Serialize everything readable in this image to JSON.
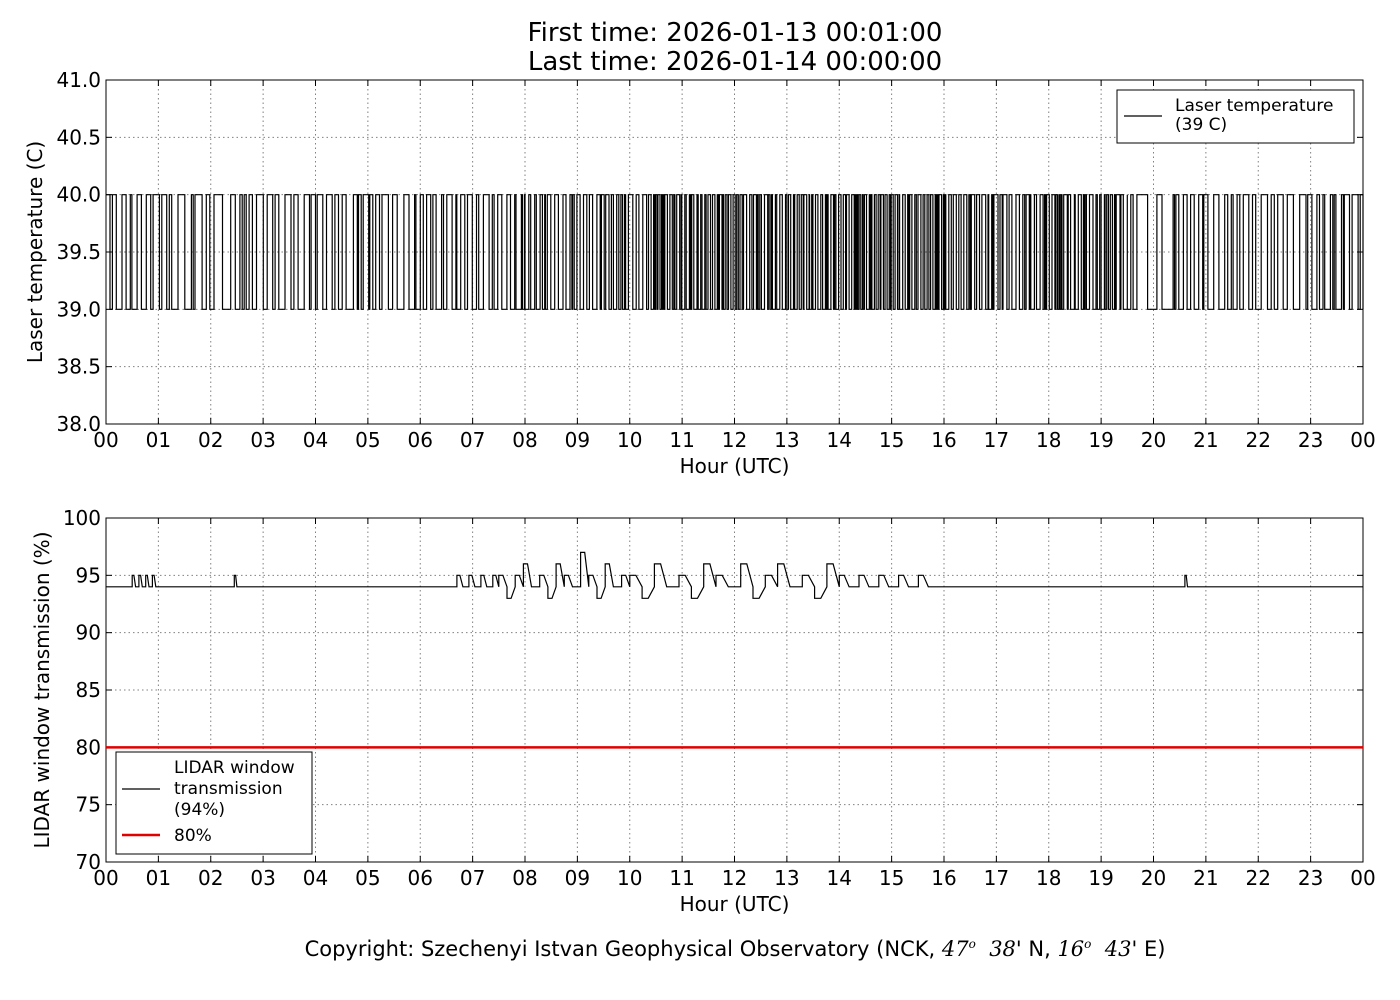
{
  "header": {
    "first_time": "First time: 2026-01-13 00:01:00",
    "last_time": "Last time: 2026-01-14 00:00:00"
  },
  "footer": {
    "prefix": "Copyright: Szechenyi Istvan Geophysical Observatory (NCK, ",
    "lat_deg": "47",
    "lat_sup": "o",
    "lat_min": "38",
    "lat_suffix": "' N, ",
    "lon_deg": "16",
    "lon_sup": "o",
    "lon_min": "43",
    "lon_suffix": "' E)"
  },
  "colors": {
    "series": "#000000",
    "threshold": "#e00000",
    "grid": "#808080"
  },
  "chart_data": [
    {
      "type": "line",
      "ylabel": "Laser temperature (C)",
      "xlabel": "Hour (UTC)",
      "xlim": [
        0,
        24
      ],
      "ylim": [
        38.0,
        41.0
      ],
      "xticks": [
        0,
        1,
        2,
        3,
        4,
        5,
        6,
        7,
        8,
        9,
        10,
        11,
        12,
        13,
        14,
        15,
        16,
        17,
        18,
        19,
        20,
        21,
        22,
        23,
        24
      ],
      "xtick_labels": [
        "00",
        "01",
        "02",
        "03",
        "04",
        "05",
        "06",
        "07",
        "08",
        "09",
        "10",
        "11",
        "12",
        "13",
        "14",
        "15",
        "16",
        "17",
        "18",
        "19",
        "20",
        "21",
        "22",
        "23",
        "00"
      ],
      "yticks": [
        38.0,
        38.5,
        39.0,
        39.5,
        40.0,
        40.5,
        41.0
      ],
      "ytick_labels": [
        "38.0",
        "38.5",
        "39.0",
        "39.5",
        "40.0",
        "40.5",
        "41.0"
      ],
      "grid": true,
      "legend_position": "upper right",
      "series": [
        {
          "name": "Laser temperature",
          "legend_label": [
            "Laser temperature",
            "(39 C)"
          ],
          "levels": [
            39.0,
            40.0
          ],
          "segments": [
            {
              "x0": 0.0,
              "x1": 0.9,
              "toggle_rate": 16
            },
            {
              "x0": 0.9,
              "x1": 1.7,
              "toggle_rate": 12
            },
            {
              "x0": 1.7,
              "x1": 2.6,
              "toggle_rate": 10
            },
            {
              "x0": 2.6,
              "x1": 4.0,
              "toggle_rate": 13
            },
            {
              "x0": 4.0,
              "x1": 6.0,
              "toggle_rate": 12
            },
            {
              "x0": 6.0,
              "x1": 8.0,
              "toggle_rate": 16
            },
            {
              "x0": 8.0,
              "x1": 10.5,
              "toggle_rate": 20
            },
            {
              "x0": 10.5,
              "x1": 13.0,
              "toggle_rate": 28
            },
            {
              "x0": 13.0,
              "x1": 16.5,
              "toggle_rate": 30
            },
            {
              "x0": 16.5,
              "x1": 19.5,
              "toggle_rate": 22
            },
            {
              "x0": 19.5,
              "x1": 20.4,
              "toggle_rate": 8
            },
            {
              "x0": 20.4,
              "x1": 24.0,
              "toggle_rate": 14
            }
          ]
        }
      ]
    },
    {
      "type": "line",
      "ylabel": "LIDAR window transmission (%)",
      "xlabel": "Hour (UTC)",
      "xlim": [
        0,
        24
      ],
      "ylim": [
        70,
        100
      ],
      "xticks": [
        0,
        1,
        2,
        3,
        4,
        5,
        6,
        7,
        8,
        9,
        10,
        11,
        12,
        13,
        14,
        15,
        16,
        17,
        18,
        19,
        20,
        21,
        22,
        23,
        24
      ],
      "xtick_labels": [
        "00",
        "01",
        "02",
        "03",
        "04",
        "05",
        "06",
        "07",
        "08",
        "09",
        "10",
        "11",
        "12",
        "13",
        "14",
        "15",
        "16",
        "17",
        "18",
        "19",
        "20",
        "21",
        "22",
        "23",
        "00"
      ],
      "yticks": [
        70,
        75,
        80,
        85,
        90,
        95,
        100
      ],
      "ytick_labels": [
        "70",
        "75",
        "80",
        "85",
        "90",
        "95",
        "100"
      ],
      "grid": true,
      "legend_position": "lower left",
      "series": [
        {
          "name": "LIDAR window transmission",
          "legend_label": [
            "LIDAR window",
            "transmission",
            "(94%)"
          ],
          "baseline": 94,
          "spikes": [
            {
              "x0": 0.5,
              "x1": 0.95,
              "values": [
                95,
                94,
                95,
                94,
                95,
                94,
                95
              ]
            },
            {
              "x0": 2.45,
              "x1": 2.5,
              "values": [
                95
              ]
            },
            {
              "x0": 6.7,
              "x1": 7.5,
              "values": [
                95,
                94,
                95,
                94,
                95,
                94,
                95
              ]
            },
            {
              "x0": 7.5,
              "x1": 10.0,
              "values": [
                95,
                93,
                95,
                96,
                94,
                95,
                93,
                96,
                95,
                94,
                97,
                95,
                93,
                96,
                94,
                95
              ]
            },
            {
              "x0": 10.0,
              "x1": 14.0,
              "values": [
                95,
                93,
                96,
                94,
                95,
                93,
                96,
                95,
                94,
                96,
                93,
                95,
                96,
                94,
                95,
                93,
                96
              ]
            },
            {
              "x0": 14.0,
              "x1": 15.7,
              "values": [
                95,
                94,
                95,
                94,
                95,
                94,
                95,
                94,
                95
              ]
            },
            {
              "x0": 20.6,
              "x1": 20.65,
              "values": [
                95
              ]
            }
          ]
        },
        {
          "name": "80%",
          "legend_label": [
            "80%"
          ],
          "constant": 80
        }
      ]
    }
  ]
}
